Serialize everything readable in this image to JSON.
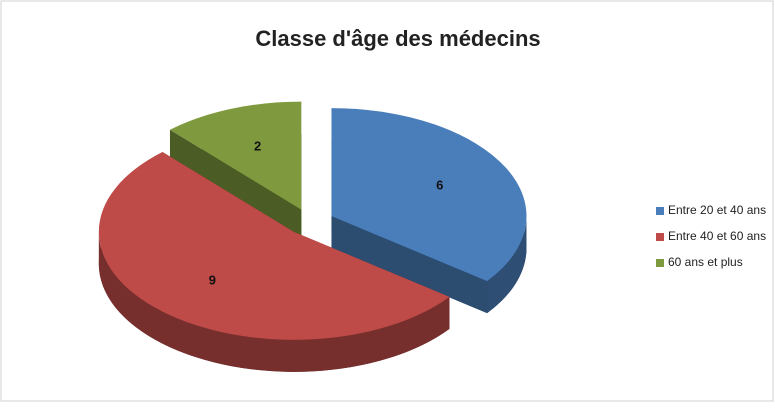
{
  "chart_data": {
    "type": "pie",
    "title": "Classe d'âge des médecins",
    "categories": [
      "Entre 20 et 40 ans",
      "Entre 40 et 60 ans",
      "60 ans et plus"
    ],
    "values": [
      6,
      9,
      2
    ],
    "colors": [
      "#4a7ebb",
      "#be4b48",
      "#7f9a3e"
    ],
    "legend": "right"
  }
}
